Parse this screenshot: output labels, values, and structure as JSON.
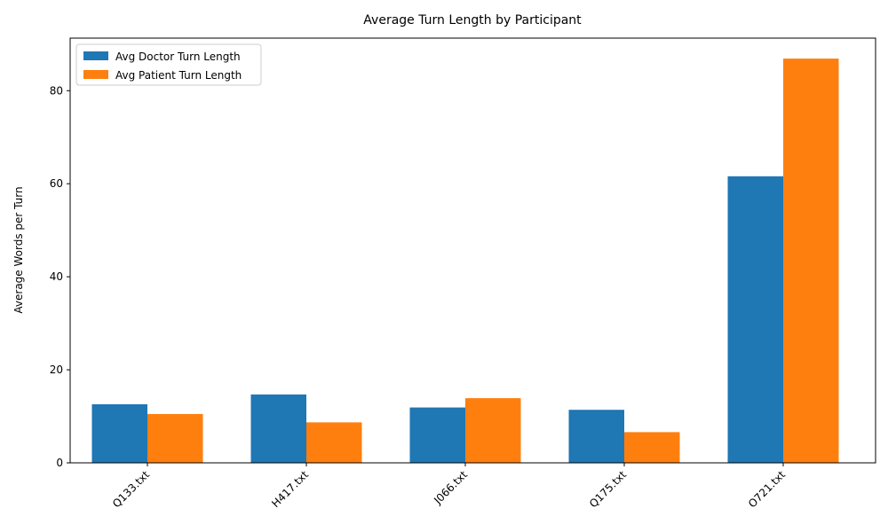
{
  "chart_data": {
    "type": "bar",
    "title": "Average Turn Length by Participant",
    "xlabel": "",
    "ylabel": "Average Words per Turn",
    "categories": [
      "Q133.txt",
      "H417.txt",
      "J066.txt",
      "Q175.txt",
      "O721.txt"
    ],
    "series": [
      {
        "name": "Avg Doctor Turn Length",
        "color": "#1f77b4",
        "values": [
          12.6,
          14.7,
          11.9,
          11.4,
          61.6
        ]
      },
      {
        "name": "Avg Patient Turn Length",
        "color": "#ff7f0e",
        "values": [
          10.5,
          8.7,
          13.9,
          6.6,
          86.9
        ]
      }
    ],
    "ylim": [
      0,
      91.3
    ],
    "yticks": [
      0,
      20,
      40,
      60,
      80
    ],
    "legend_position": "top-left",
    "grid": false
  }
}
